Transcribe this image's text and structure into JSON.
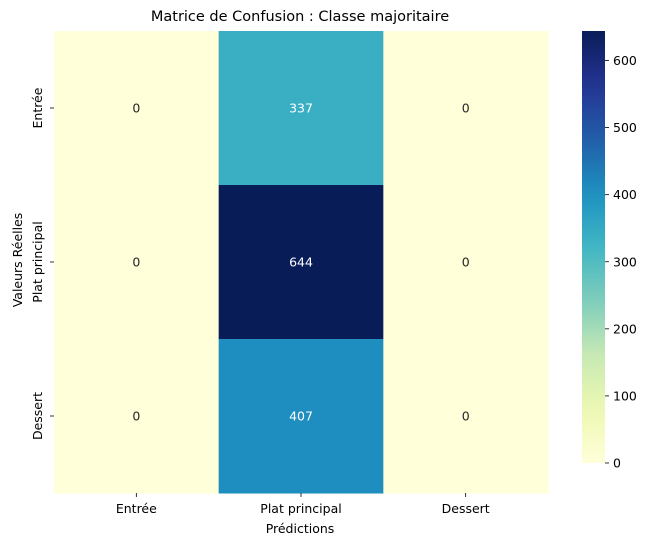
{
  "chart_data": {
    "type": "heatmap",
    "title": "Matrice de Confusion : Classe majoritaire",
    "xlabel": "Prédictions",
    "ylabel": "Valeurs Réelles",
    "x_categories": [
      "Entrée",
      "Plat principal",
      "Dessert"
    ],
    "y_categories": [
      "Entrée",
      "Plat principal",
      "Dessert"
    ],
    "values": [
      [
        0,
        337,
        0
      ],
      [
        0,
        644,
        0
      ],
      [
        0,
        407,
        0
      ]
    ],
    "colormap": "YlGnBu",
    "colorbar": {
      "range": [
        0,
        644
      ],
      "ticks": [
        0,
        100,
        200,
        300,
        400,
        500,
        600
      ]
    },
    "colors": {
      "low": "#ffffd9",
      "high": "#081d58"
    }
  }
}
